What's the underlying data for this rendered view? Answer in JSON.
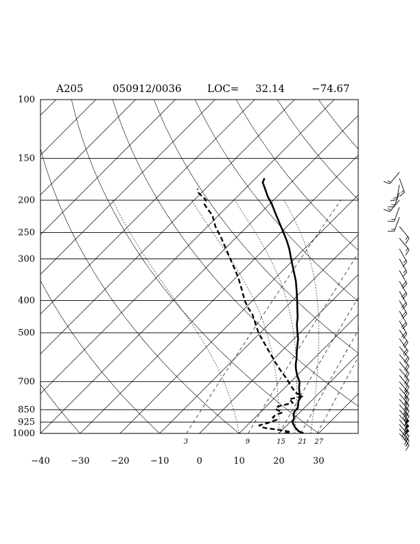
{
  "chart_data": {
    "type": "line",
    "chart_kind": "skew-T log-P sounding",
    "title": {
      "station": "A205",
      "datetime": "050912/0036",
      "loc_label": "LOC=",
      "lat": "32.14",
      "lon": "−74.67"
    },
    "pressure_ticks": [
      {
        "p": 100,
        "label": "100"
      },
      {
        "p": 150,
        "label": "150"
      },
      {
        "p": 200,
        "label": "200"
      },
      {
        "p": 250,
        "label": "250"
      },
      {
        "p": 300,
        "label": "300"
      },
      {
        "p": 400,
        "label": "400"
      },
      {
        "p": 500,
        "label": "500"
      },
      {
        "p": 700,
        "label": "700"
      },
      {
        "p": 850,
        "label": "850"
      },
      {
        "p": 925,
        "label": "925"
      },
      {
        "p": 1000,
        "label": "1000"
      }
    ],
    "temperature_ticks": [
      {
        "t": -40,
        "label": "−40"
      },
      {
        "t": -30,
        "label": "−30"
      },
      {
        "t": -20,
        "label": "−20"
      },
      {
        "t": -10,
        "label": "−10"
      },
      {
        "t": 0,
        "label": "0"
      },
      {
        "t": 10,
        "label": "10"
      },
      {
        "t": 20,
        "label": "20"
      },
      {
        "t": 30,
        "label": "30"
      }
    ],
    "mixing_ratio_labels": [
      {
        "w": 3,
        "label": "3"
      },
      {
        "w": 9,
        "label": "9"
      },
      {
        "w": 15,
        "label": "15"
      },
      {
        "w": 21,
        "label": "21"
      },
      {
        "w": 27,
        "label": "27"
      }
    ],
    "xlim": [
      -40,
      40
    ],
    "plim": [
      100,
      1000
    ],
    "temperature": [
      {
        "p": 1000,
        "t": 26.2
      },
      {
        "p": 985,
        "t": 24.4
      },
      {
        "p": 960,
        "t": 22.6
      },
      {
        "p": 940,
        "t": 21.4
      },
      {
        "p": 925,
        "t": 20.6
      },
      {
        "p": 900,
        "t": 20.0
      },
      {
        "p": 880,
        "t": 19.0
      },
      {
        "p": 860,
        "t": 18.4
      },
      {
        "p": 840,
        "t": 18.4
      },
      {
        "p": 820,
        "t": 17.6
      },
      {
        "p": 800,
        "t": 16.8
      },
      {
        "p": 780,
        "t": 16.4
      },
      {
        "p": 760,
        "t": 15.2
      },
      {
        "p": 730,
        "t": 13.6
      },
      {
        "p": 700,
        "t": 12.2
      },
      {
        "p": 670,
        "t": 10.0
      },
      {
        "p": 640,
        "t": 8.0
      },
      {
        "p": 620,
        "t": 6.8
      },
      {
        "p": 600,
        "t": 5.8
      },
      {
        "p": 560,
        "t": 3.4
      },
      {
        "p": 520,
        "t": 1.0
      },
      {
        "p": 500,
        "t": -0.6
      },
      {
        "p": 470,
        "t": -3.0
      },
      {
        "p": 450,
        "t": -4.4
      },
      {
        "p": 420,
        "t": -7.0
      },
      {
        "p": 400,
        "t": -8.8
      },
      {
        "p": 370,
        "t": -11.8
      },
      {
        "p": 350,
        "t": -14.0
      },
      {
        "p": 330,
        "t": -16.6
      },
      {
        "p": 300,
        "t": -20.8
      },
      {
        "p": 280,
        "t": -23.8
      },
      {
        "p": 265,
        "t": -26.4
      },
      {
        "p": 250,
        "t": -29.4
      },
      {
        "p": 235,
        "t": -32.6
      },
      {
        "p": 220,
        "t": -36.0
      },
      {
        "p": 205,
        "t": -39.6
      },
      {
        "p": 195,
        "t": -42.4
      },
      {
        "p": 185,
        "t": -45.0
      },
      {
        "p": 177,
        "t": -47.2
      },
      {
        "p": 172,
        "t": -47.8
      }
    ],
    "dewpoint": [
      {
        "p": 1000,
        "t": 21.4
      },
      {
        "p": 990,
        "t": 22.6
      },
      {
        "p": 975,
        "t": 19.0
      },
      {
        "p": 965,
        "t": 15.6
      },
      {
        "p": 955,
        "t": 13.6
      },
      {
        "p": 945,
        "t": 13.0
      },
      {
        "p": 930,
        "t": 14.6
      },
      {
        "p": 910,
        "t": 16.0
      },
      {
        "p": 895,
        "t": 14.4
      },
      {
        "p": 880,
        "t": 14.6
      },
      {
        "p": 865,
        "t": 15.6
      },
      {
        "p": 845,
        "t": 13.0
      },
      {
        "p": 830,
        "t": 13.0
      },
      {
        "p": 810,
        "t": 15.8
      },
      {
        "p": 790,
        "t": 14.0
      },
      {
        "p": 775,
        "t": 16.6
      },
      {
        "p": 755,
        "t": 14.0
      },
      {
        "p": 720,
        "t": 11.0
      },
      {
        "p": 690,
        "t": 8.6
      },
      {
        "p": 650,
        "t": 4.8
      },
      {
        "p": 610,
        "t": 1.0
      },
      {
        "p": 575,
        "t": -2.4
      },
      {
        "p": 540,
        "t": -6.0
      },
      {
        "p": 500,
        "t": -10.4
      },
      {
        "p": 470,
        "t": -13.4
      },
      {
        "p": 440,
        "t": -16.6
      },
      {
        "p": 420,
        "t": -19.4
      },
      {
        "p": 400,
        "t": -22.0
      },
      {
        "p": 370,
        "t": -25.6
      },
      {
        "p": 340,
        "t": -29.6
      },
      {
        "p": 310,
        "t": -34.4
      },
      {
        "p": 285,
        "t": -38.8
      },
      {
        "p": 260,
        "t": -43.6
      },
      {
        "p": 240,
        "t": -48.0
      },
      {
        "p": 222,
        "t": -51.6
      },
      {
        "p": 212,
        "t": -54.6
      },
      {
        "p": 205,
        "t": -56.6
      },
      {
        "p": 200,
        "t": -57.0
      },
      {
        "p": 190,
        "t": -60.8
      },
      {
        "p": 185,
        "t": -62.0
      }
    ],
    "wind_barbs": [
      {
        "p": 1000,
        "dir": 140,
        "spd": 15
      },
      {
        "p": 970,
        "dir": 140,
        "spd": 25
      },
      {
        "p": 940,
        "dir": 140,
        "spd": 40
      },
      {
        "p": 910,
        "dir": 140,
        "spd": 55
      },
      {
        "p": 880,
        "dir": 140,
        "spd": 55
      },
      {
        "p": 850,
        "dir": 140,
        "spd": 55
      },
      {
        "p": 820,
        "dir": 140,
        "spd": 35
      },
      {
        "p": 790,
        "dir": 140,
        "spd": 25
      },
      {
        "p": 760,
        "dir": 140,
        "spd": 25
      },
      {
        "p": 730,
        "dir": 140,
        "spd": 25
      },
      {
        "p": 700,
        "dir": 140,
        "spd": 25
      },
      {
        "p": 670,
        "dir": 140,
        "spd": 20
      },
      {
        "p": 640,
        "dir": 140,
        "spd": 20
      },
      {
        "p": 610,
        "dir": 140,
        "spd": 20
      },
      {
        "p": 580,
        "dir": 140,
        "spd": 20
      },
      {
        "p": 550,
        "dir": 140,
        "spd": 20
      },
      {
        "p": 520,
        "dir": 145,
        "spd": 20
      },
      {
        "p": 490,
        "dir": 145,
        "spd": 20
      },
      {
        "p": 460,
        "dir": 150,
        "spd": 20
      },
      {
        "p": 430,
        "dir": 150,
        "spd": 20
      },
      {
        "p": 400,
        "dir": 150,
        "spd": 20
      },
      {
        "p": 375,
        "dir": 150,
        "spd": 20
      },
      {
        "p": 350,
        "dir": 150,
        "spd": 20
      },
      {
        "p": 325,
        "dir": 150,
        "spd": 20
      },
      {
        "p": 300,
        "dir": 150,
        "spd": 15
      },
      {
        "p": 280,
        "dir": 150,
        "spd": 15
      },
      {
        "p": 260,
        "dir": 140,
        "spd": 15
      },
      {
        "p": 240,
        "dir": 140,
        "spd": 15
      },
      {
        "p": 225,
        "dir": 200,
        "spd": 15
      },
      {
        "p": 210,
        "dir": 200,
        "spd": 15
      },
      {
        "p": 200,
        "dir": 220,
        "spd": 15
      },
      {
        "p": 190,
        "dir": 200,
        "spd": 15
      },
      {
        "p": 180,
        "dir": 190,
        "spd": 15
      },
      {
        "p": 172,
        "dir": 160,
        "spd": 15
      },
      {
        "p": 165,
        "dir": 220,
        "spd": 15
      }
    ]
  }
}
